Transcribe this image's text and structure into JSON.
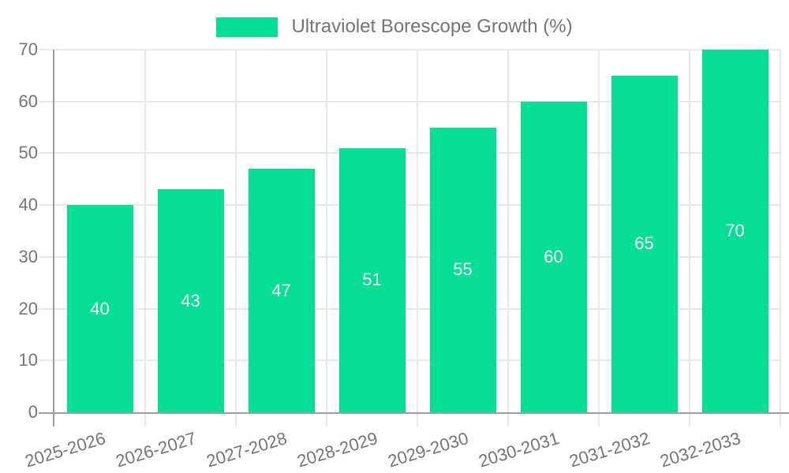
{
  "chart_data": {
    "type": "bar",
    "title": "Ultraviolet Borescope Growth (%)",
    "legend": {
      "label": "Ultraviolet Borescope Growth (%)",
      "position": "top-center"
    },
    "categories": [
      "2025-2026",
      "2026-2027",
      "2027-2028",
      "2028-2029",
      "2029-2030",
      "2030-2031",
      "2031-2032",
      "2032-2033"
    ],
    "values": [
      40,
      43,
      47,
      51,
      55,
      60,
      65,
      70
    ],
    "series": [
      {
        "name": "Ultraviolet Borescope Growth (%)",
        "values": [
          40,
          43,
          47,
          51,
          55,
          60,
          65,
          70
        ]
      }
    ],
    "xlabel": "",
    "ylabel": "",
    "ylim": [
      0,
      70
    ],
    "ytick_step": 10,
    "yticks": [
      0,
      10,
      20,
      30,
      40,
      50,
      60,
      70
    ],
    "grid": "horizontal-lines-and-category-boundary-lines",
    "value_labels": "inside-center-white",
    "x_label_rotation_deg": -17,
    "colors": {
      "bar": "#06DE96",
      "value_label": "#FFFFFF",
      "axis_text": "#757575",
      "grid_line": "#E8E8E8",
      "axis_line": "#9E9E9E",
      "background": "#FFFFFF"
    }
  }
}
